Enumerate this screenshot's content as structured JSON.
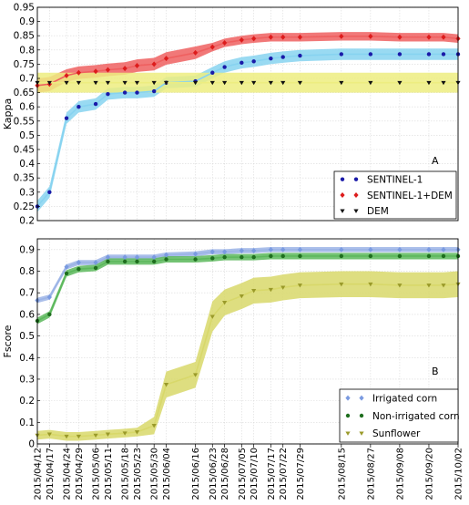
{
  "chart_data": [
    {
      "type": "line",
      "panel_label": "A",
      "ylabel": "Kappa",
      "xlabel": "",
      "ylim": [
        0.2,
        0.95
      ],
      "yticks": [
        0.2,
        0.25,
        0.3,
        0.35,
        0.4,
        0.45,
        0.5,
        0.55,
        0.6,
        0.65,
        0.7,
        0.75,
        0.8,
        0.85,
        0.9,
        0.95
      ],
      "grid": true,
      "legend_position": "bottom-right",
      "series": [
        {
          "name": "SENTINEL-1",
          "color": "#87d3f0",
          "marker_color": "#1a1aa8",
          "marker": "circle",
          "values": [
            0.25,
            0.3,
            0.56,
            0.6,
            0.61,
            0.645,
            0.65,
            0.65,
            0.655,
            0.685,
            0.69,
            0.72,
            0.74,
            0.755,
            0.76,
            0.77,
            0.775,
            0.78,
            0.785,
            0.785,
            0.785,
            0.785,
            0.785,
            0.785
          ],
          "band": [
            0.02,
            0.02,
            0.02,
            0.02,
            0.02,
            0.02,
            0.02,
            0.02,
            0.02,
            0.02,
            0.02,
            0.02,
            0.02,
            0.02,
            0.02,
            0.02,
            0.02,
            0.02,
            0.02,
            0.02,
            0.02,
            0.02,
            0.02,
            0.02
          ]
        },
        {
          "name": "SENTINEL-1+DEM",
          "color": "#ef6060",
          "marker_color": "#dd1c1c",
          "marker": "diamond",
          "values": [
            0.675,
            0.68,
            0.71,
            0.72,
            0.725,
            0.73,
            0.735,
            0.745,
            0.75,
            0.77,
            0.79,
            0.81,
            0.825,
            0.835,
            0.84,
            0.845,
            0.845,
            0.845,
            0.848,
            0.848,
            0.845,
            0.845,
            0.845,
            0.84
          ],
          "band": [
            0.025,
            0.025,
            0.022,
            0.022,
            0.022,
            0.022,
            0.022,
            0.022,
            0.022,
            0.022,
            0.022,
            0.015,
            0.015,
            0.015,
            0.015,
            0.015,
            0.015,
            0.015,
            0.015,
            0.015,
            0.015,
            0.015,
            0.015,
            0.015
          ]
        },
        {
          "name": "DEM",
          "color": "#eded80",
          "marker_color": "#111111",
          "marker": "triangle-down",
          "values": [
            0.685,
            0.685,
            0.685,
            0.685,
            0.685,
            0.685,
            0.685,
            0.685,
            0.685,
            0.685,
            0.685,
            0.685,
            0.685,
            0.685,
            0.685,
            0.685,
            0.685,
            0.685,
            0.685,
            0.685,
            0.685,
            0.685,
            0.685,
            0.685
          ],
          "band": [
            0.035,
            0.035,
            0.035,
            0.035,
            0.035,
            0.035,
            0.035,
            0.035,
            0.035,
            0.035,
            0.035,
            0.035,
            0.035,
            0.035,
            0.035,
            0.035,
            0.035,
            0.035,
            0.035,
            0.035,
            0.035,
            0.035,
            0.035,
            0.035
          ]
        }
      ]
    },
    {
      "type": "line",
      "panel_label": "B",
      "ylabel": "Fscore",
      "xlabel": "",
      "ylim": [
        0,
        0.95
      ],
      "yticks": [
        0,
        0.1,
        0.2,
        0.3,
        0.4,
        0.5,
        0.6,
        0.7,
        0.8,
        0.9
      ],
      "grid": true,
      "legend_position": "bottom-right",
      "series": [
        {
          "name": "Irrigated corn",
          "color": "#9cb4e6",
          "marker_color": "#7a9ae0",
          "marker": "diamond",
          "values": [
            0.665,
            0.68,
            0.82,
            0.84,
            0.84,
            0.865,
            0.865,
            0.865,
            0.865,
            0.875,
            0.88,
            0.89,
            0.89,
            0.895,
            0.895,
            0.9,
            0.9,
            0.9,
            0.9,
            0.9,
            0.9,
            0.9,
            0.9,
            0.9
          ],
          "band": [
            0.012,
            0.012,
            0.012,
            0.012,
            0.012,
            0.012,
            0.012,
            0.012,
            0.012,
            0.012,
            0.012,
            0.012,
            0.012,
            0.012,
            0.012,
            0.012,
            0.012,
            0.012,
            0.012,
            0.012,
            0.012,
            0.012,
            0.012,
            0.012
          ]
        },
        {
          "name": "Non-irrigated corn",
          "color": "#5cb85c",
          "marker_color": "#1e6e1e",
          "marker": "circle",
          "values": [
            0.57,
            0.6,
            0.79,
            0.81,
            0.815,
            0.845,
            0.845,
            0.845,
            0.845,
            0.855,
            0.855,
            0.86,
            0.865,
            0.865,
            0.865,
            0.87,
            0.87,
            0.87,
            0.87,
            0.87,
            0.87,
            0.87,
            0.87,
            0.87
          ],
          "band": [
            0.015,
            0.015,
            0.015,
            0.015,
            0.015,
            0.015,
            0.015,
            0.015,
            0.015,
            0.015,
            0.015,
            0.015,
            0.015,
            0.015,
            0.015,
            0.015,
            0.015,
            0.015,
            0.015,
            0.015,
            0.015,
            0.015,
            0.015,
            0.015
          ]
        },
        {
          "name": "Sunflower",
          "color": "#d8d86a",
          "marker_color": "#9a9a2a",
          "marker": "triangle-down",
          "values": [
            0.04,
            0.045,
            0.035,
            0.035,
            0.04,
            0.045,
            0.05,
            0.055,
            0.085,
            0.275,
            0.32,
            0.59,
            0.655,
            0.685,
            0.71,
            0.715,
            0.725,
            0.735,
            0.74,
            0.74,
            0.735,
            0.735,
            0.735,
            0.74
          ],
          "band": [
            0.02,
            0.02,
            0.02,
            0.02,
            0.02,
            0.02,
            0.02,
            0.02,
            0.04,
            0.06,
            0.06,
            0.07,
            0.06,
            0.06,
            0.06,
            0.06,
            0.06,
            0.06,
            0.06,
            0.06,
            0.06,
            0.06,
            0.06,
            0.06
          ]
        }
      ]
    }
  ],
  "x_axis": {
    "dates": [
      "2015/04/12",
      "2015/04/17",
      "2015/04/24",
      "2015/04/29",
      "2015/05/06",
      "2015/05/11",
      "2015/05/18",
      "2015/05/23",
      "2015/05/30",
      "2015/06/04",
      "2015/06/16",
      "2015/06/23",
      "2015/06/28",
      "2015/07/05",
      "2015/07/10",
      "2015/07/17",
      "2015/07/22",
      "2015/07/29",
      "2015/08/15",
      "2015/08/27",
      "2015/09/08",
      "2015/09/20",
      "2015/10/02"
    ],
    "point_dates": [
      "2015/04/12",
      "2015/04/17",
      "2015/04/24",
      "2015/04/29",
      "2015/05/06",
      "2015/05/11",
      "2015/05/18",
      "2015/05/23",
      "2015/05/30",
      "2015/06/04",
      "2015/06/16",
      "2015/06/23",
      "2015/06/28",
      "2015/07/05",
      "2015/07/10",
      "2015/07/17",
      "2015/07/22",
      "2015/07/29",
      "2015/08/15",
      "2015/08/27",
      "2015/09/08",
      "2015/09/20",
      "2015/10/02",
      "2015/10/02"
    ]
  }
}
